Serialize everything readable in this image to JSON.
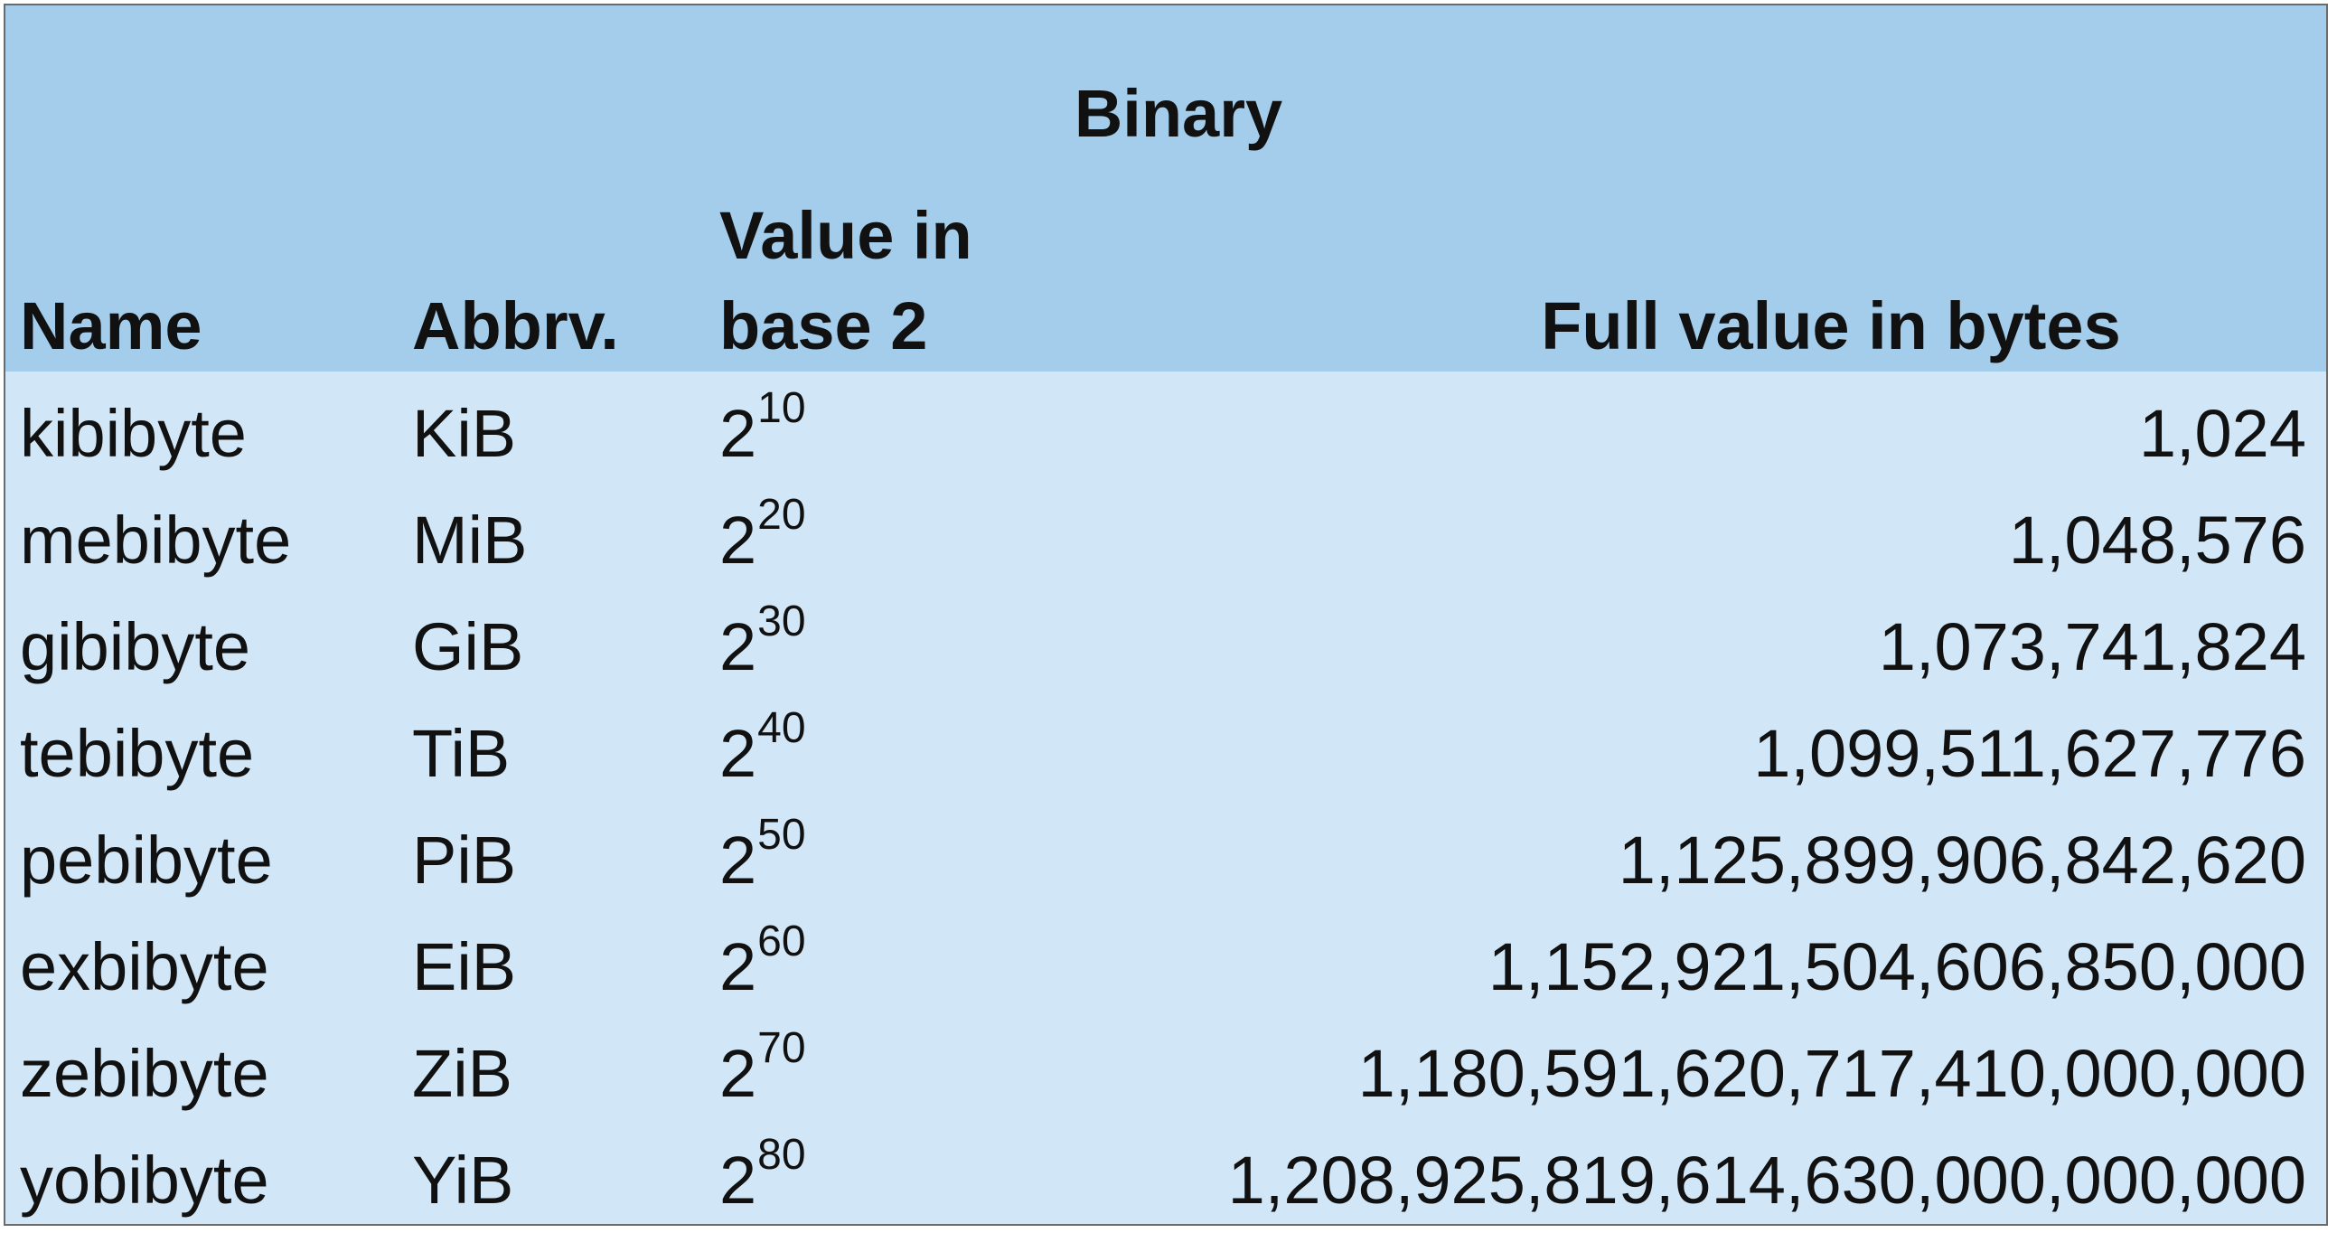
{
  "table": {
    "title": "Binary",
    "headers": {
      "name": "Name",
      "abbr": "Abbrv.",
      "base": "Value in base 2",
      "full": "Full value in bytes"
    },
    "rows": [
      {
        "name": "kibibyte",
        "abbr": "KiB",
        "base": "2",
        "exp": "10",
        "full": "1,024"
      },
      {
        "name": "mebibyte",
        "abbr": "MiB",
        "base": "2",
        "exp": "20",
        "full": "1,048,576"
      },
      {
        "name": "gibibyte",
        "abbr": "GiB",
        "base": "2",
        "exp": "30",
        "full": "1,073,741,824"
      },
      {
        "name": "tebibyte",
        "abbr": "TiB",
        "base": "2",
        "exp": "40",
        "full": "1,099,511,627,776"
      },
      {
        "name": "pebibyte",
        "abbr": "PiB",
        "base": "2",
        "exp": "50",
        "full": "1,125,899,906,842,620"
      },
      {
        "name": "exbibyte",
        "abbr": "EiB",
        "base": "2",
        "exp": "60",
        "full": "1,152,921,504,606,850,000"
      },
      {
        "name": "zebibyte",
        "abbr": "ZiB",
        "base": "2",
        "exp": "70",
        "full": "1,180,591,620,717,410,000,000"
      },
      {
        "name": "yobibyte",
        "abbr": "YiB",
        "base": "2",
        "exp": "80",
        "full": "1,208,925,819,614,630,000,000,000"
      }
    ]
  },
  "colors": {
    "header_bg": "#a4cdec",
    "body_bg": "#d1e6f6",
    "border": "#6b6b6b"
  }
}
